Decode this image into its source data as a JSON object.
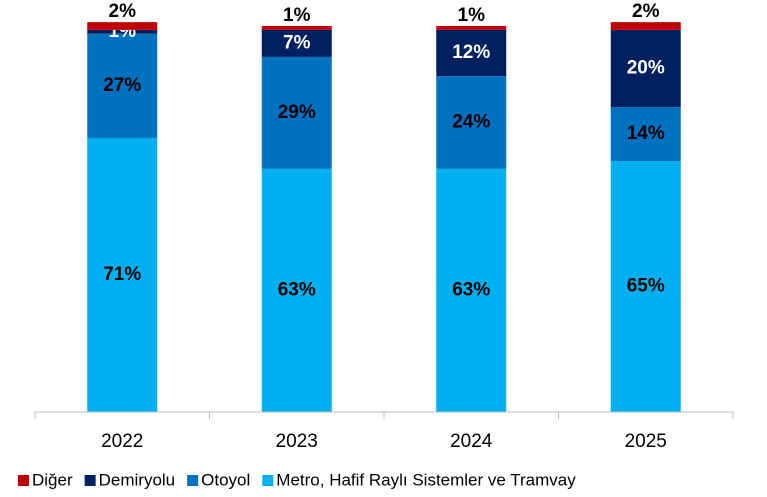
{
  "chart_data": {
    "type": "stacked_bar",
    "categories": [
      "2022",
      "2023",
      "2024",
      "2025"
    ],
    "series": [
      {
        "name": "Diğer",
        "color": "#c00000",
        "values": [
          2,
          1,
          1,
          2
        ],
        "value_labels": [
          "2%",
          "1%",
          "1%",
          "2%"
        ]
      },
      {
        "name": "Demiryolu",
        "color": "#002060",
        "values": [
          1,
          7,
          12,
          20
        ],
        "value_labels": [
          "1%",
          "7%",
          "12%",
          "20%"
        ]
      },
      {
        "name": "Otoyol",
        "color": "#0070c0",
        "values": [
          27,
          29,
          24,
          14
        ],
        "value_labels": [
          "27%",
          "29%",
          "24%",
          "14%"
        ]
      },
      {
        "name": "Metro, Hafif Raylı Sistemler ve Tramvay",
        "color": "#00b0f0",
        "values": [
          71,
          63,
          63,
          65
        ],
        "value_labels": [
          "71%",
          "63%",
          "63%",
          "65%"
        ]
      }
    ],
    "ylim": [
      0,
      100
    ]
  }
}
